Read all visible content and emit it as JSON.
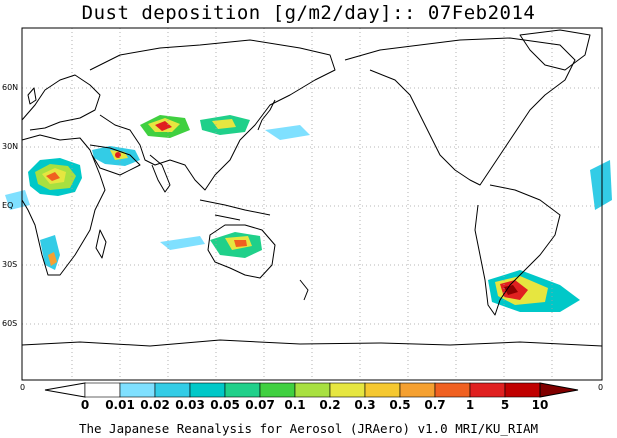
{
  "title": "Dust deposition [g/m2/day]:: 07Feb2014",
  "footer": "The Japanese Reanalysis for Aerosol (JRAero) v1.0 MRI/KU_RIAM",
  "lat_labels": [
    "60N",
    "30N",
    "EQ",
    "30S",
    "60S"
  ],
  "lon_edge_labels": [
    "0",
    "0"
  ],
  "colorbar": {
    "levels": [
      "0",
      "0.01",
      "0.02",
      "0.03",
      "0.05",
      "0.07",
      "0.1",
      "0.2",
      "0.3",
      "0.5",
      "0.7",
      "1",
      "5",
      "10"
    ],
    "colors": [
      "#ffffff",
      "#7fe0ff",
      "#33cce6",
      "#00c8c8",
      "#20d08a",
      "#40d040",
      "#a8e040",
      "#e6e640",
      "#f5c830",
      "#f5a030",
      "#f06020",
      "#e02020",
      "#c00000",
      "#8c0000"
    ],
    "under_color": "#ffffff",
    "over_color": "#800000"
  },
  "map_colors": {
    "coast": "#000000",
    "grid": "#a0a0a0",
    "frame": "#000000"
  }
}
